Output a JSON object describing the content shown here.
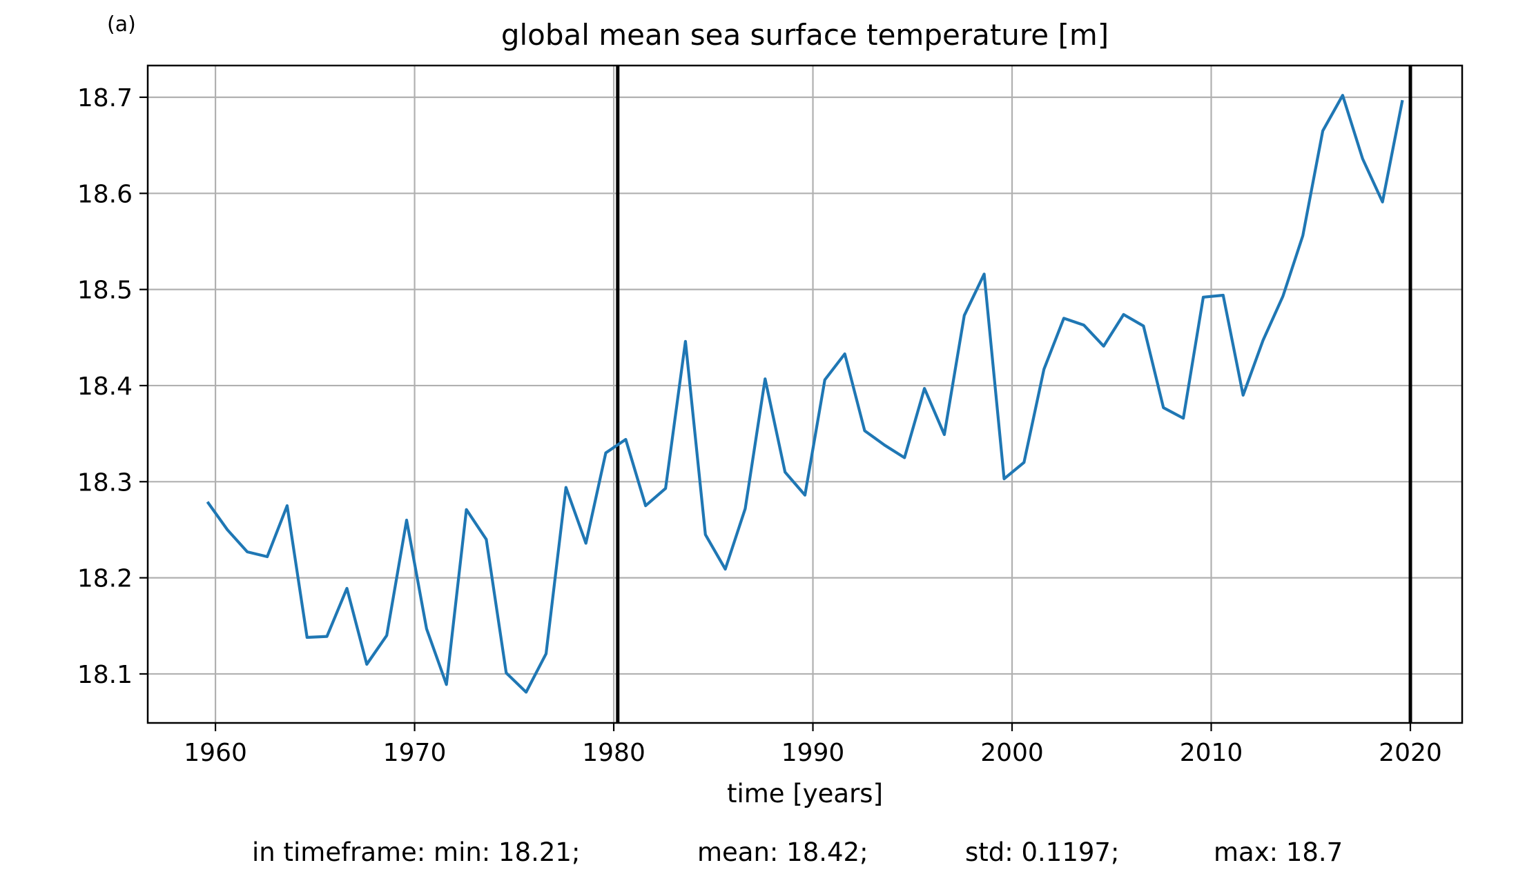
{
  "panel_label": "(a)",
  "stats": {
    "min": "in timeframe: min: 18.21;",
    "mean": "mean: 18.42;",
    "std": "std: 0.1197;",
    "max": "max: 18.7"
  },
  "chart_data": {
    "type": "line",
    "title": "global mean sea surface temperature [m]",
    "xlabel": "time [years]",
    "ylabel": "",
    "xlim": [
      1956.6,
      2022.6
    ],
    "ylim": [
      18.049,
      18.733
    ],
    "xticks": [
      1960,
      1970,
      1980,
      1990,
      2000,
      2010,
      2020
    ],
    "yticks": [
      18.1,
      18.2,
      18.3,
      18.4,
      18.5,
      18.6,
      18.7
    ],
    "grid": true,
    "line_color": "#1f77b4",
    "vertical_lines": [
      1980.2,
      2020.0
    ],
    "vertical_line_color": "#000000",
    "series": [
      {
        "x": [
          1959.6,
          1960.6,
          1961.6,
          1962.6,
          1963.6,
          1964.6,
          1965.6,
          1966.6,
          1967.6,
          1968.6,
          1969.6,
          1970.6,
          1971.6,
          1972.6,
          1973.6,
          1974.6,
          1975.6,
          1976.6,
          1977.6,
          1978.6,
          1979.6,
          1980.6,
          1981.6,
          1982.6,
          1983.6,
          1984.6,
          1985.6,
          1986.6,
          1987.6,
          1988.6,
          1989.6,
          1990.6,
          1991.6,
          1992.6,
          1993.6,
          1994.6,
          1995.6,
          1996.6,
          1997.6,
          1998.6,
          1999.6,
          2000.6,
          2001.6,
          2002.6,
          2003.6,
          2004.6,
          2005.6,
          2006.6,
          2007.6,
          2008.6,
          2009.6,
          2010.6,
          2011.6,
          2012.6,
          2013.6,
          2014.6,
          2015.6,
          2016.6,
          2017.6,
          2018.6,
          2019.6
        ],
        "values": [
          18.279,
          18.25,
          18.227,
          18.222,
          18.275,
          18.138,
          18.139,
          18.189,
          18.11,
          18.14,
          18.26,
          18.147,
          18.089,
          18.271,
          18.24,
          18.101,
          18.081,
          18.121,
          18.294,
          18.236,
          18.33,
          18.344,
          18.275,
          18.293,
          18.446,
          18.245,
          18.209,
          18.272,
          18.407,
          18.31,
          18.286,
          18.406,
          18.433,
          18.353,
          18.338,
          18.325,
          18.397,
          18.349,
          18.473,
          18.516,
          18.303,
          18.32,
          18.417,
          18.47,
          18.463,
          18.441,
          18.474,
          18.462,
          18.377,
          18.366,
          18.492,
          18.494,
          18.39,
          18.447,
          18.493,
          18.556,
          18.665,
          18.702,
          18.636,
          18.591,
          18.697
        ]
      }
    ]
  }
}
